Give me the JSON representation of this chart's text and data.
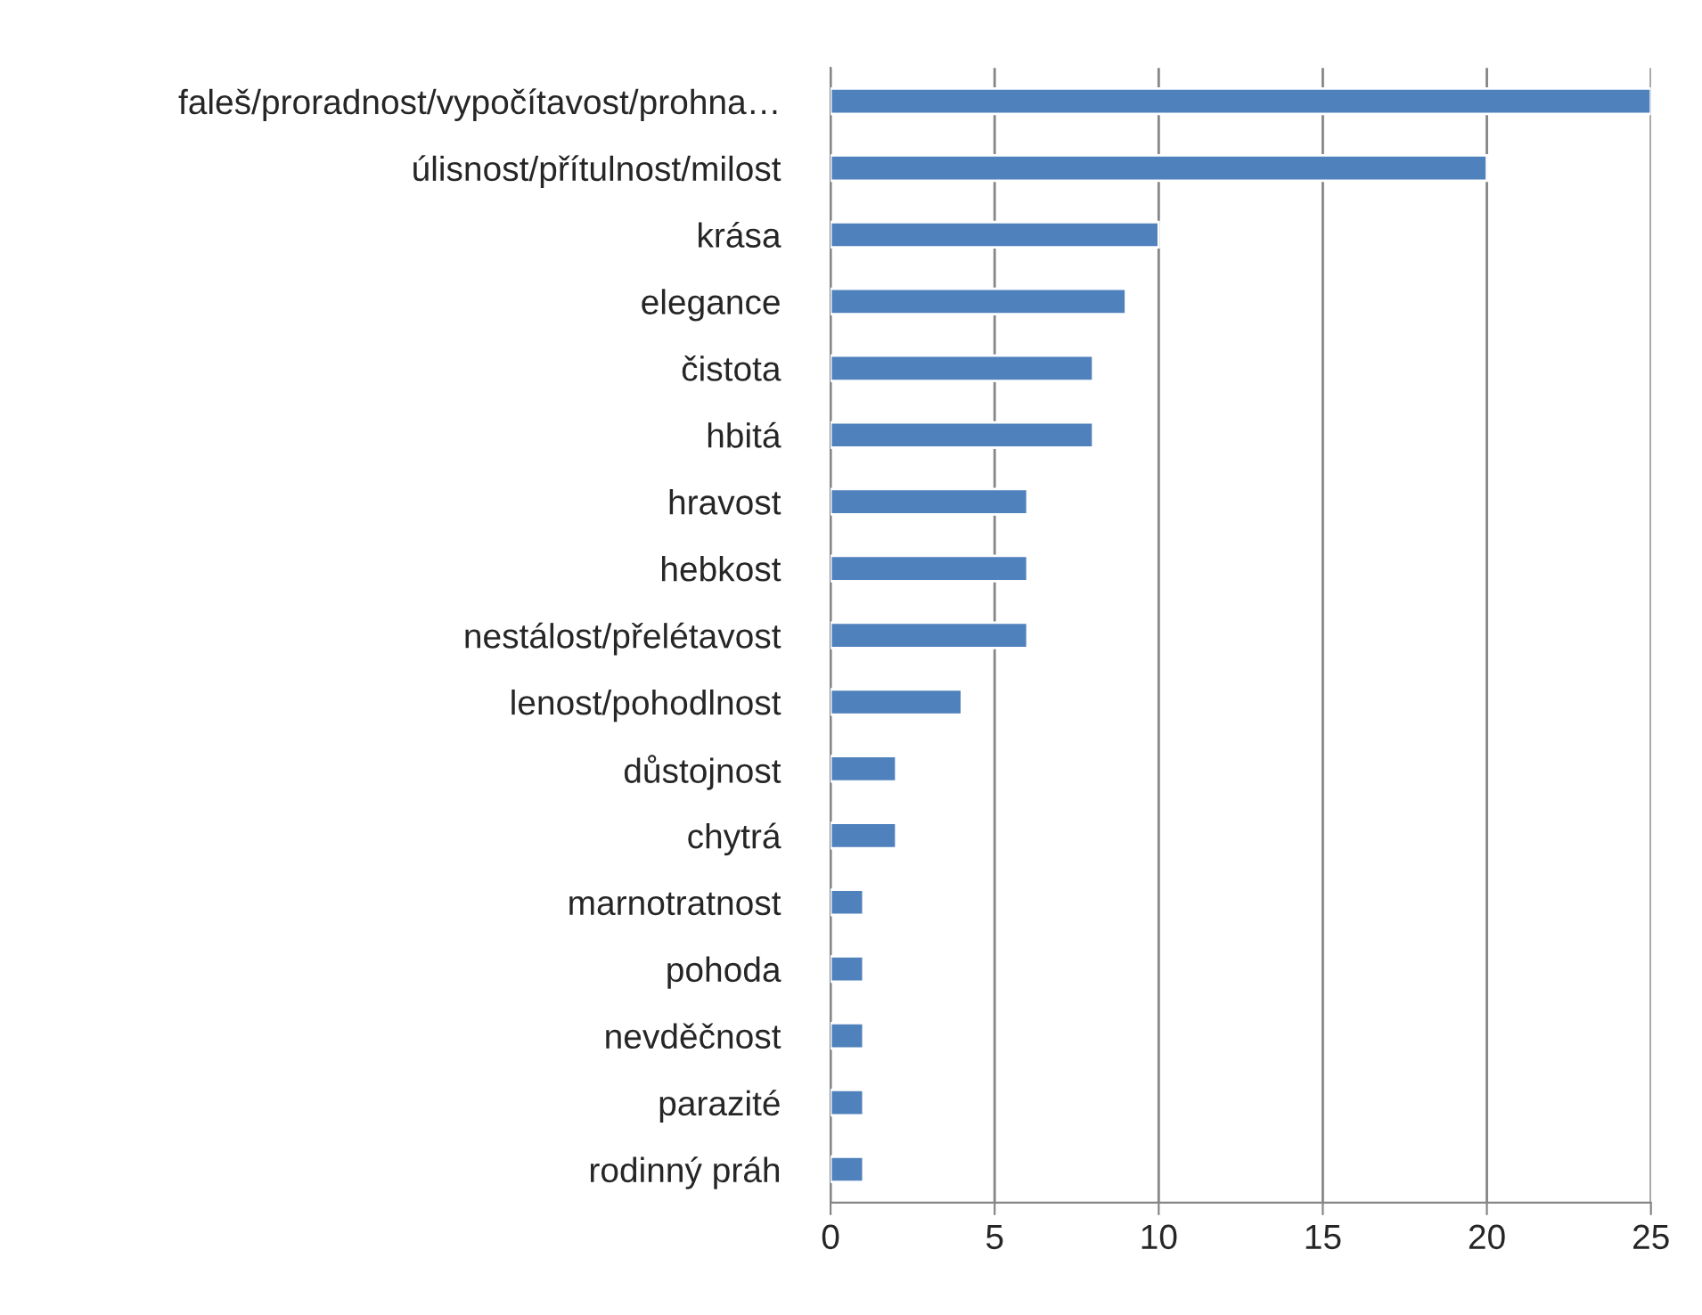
{
  "chart_data": {
    "type": "bar",
    "orientation": "horizontal",
    "categories": [
      "faleš/proradnost/vypočítavost/prohna…",
      "úlisnost/přítulnost/milost",
      "krása",
      "elegance",
      "čistota",
      "hbitá",
      "hravost",
      "hebkost",
      "nestálost/přelétavost",
      "lenost/pohodlnost",
      "důstojnost",
      "chytrá",
      "marnotratnost",
      "pohoda",
      "nevděčnost",
      "parazité",
      "rodinný práh"
    ],
    "values": [
      25,
      20,
      10,
      9,
      8,
      8,
      6,
      6,
      6,
      4,
      2,
      2,
      1,
      1,
      1,
      1,
      1
    ],
    "color": "#4f81bd",
    "xlim": [
      0,
      25
    ],
    "xticks": [
      0,
      5,
      10,
      15,
      20,
      25
    ],
    "grid": "x"
  }
}
